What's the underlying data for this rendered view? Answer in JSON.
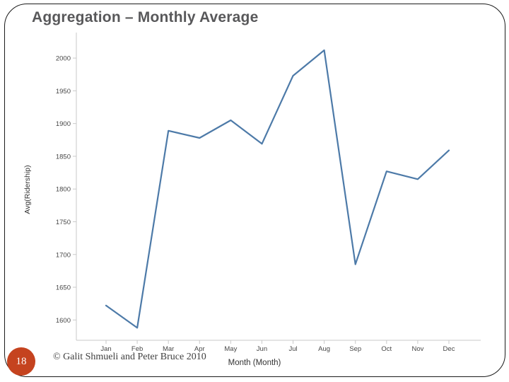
{
  "slide": {
    "title": "Aggregation – Monthly Average",
    "page_number": "18",
    "footer": "© Galit Shmueli and Peter Bruce 2010"
  },
  "chart_data": {
    "type": "line",
    "title": "",
    "categories": [
      "Jan",
      "Feb",
      "Mar",
      "Apr",
      "May",
      "Jun",
      "Jul",
      "Aug",
      "Sep",
      "Oct",
      "Nov",
      "Dec"
    ],
    "series": [
      {
        "name": "Avg(Ridership)",
        "values": [
          1622,
          1588,
          1889,
          1878,
          1905,
          1869,
          1973,
          2012,
          1685,
          1827,
          1815,
          1859
        ]
      }
    ],
    "xlabel": "Month (Month)",
    "ylabel": "Avg(Ridership)",
    "y_ticks": [
      2000,
      1950,
      1900,
      1850,
      1800,
      1750,
      1700,
      1650,
      1600
    ],
    "ylim": [
      1569,
      2039
    ],
    "grid": false,
    "legend": "none",
    "line_color": "#4d7aa8"
  },
  "colors": {
    "background": "#ffffff",
    "border": "#1b1b1b",
    "title": "#58585a",
    "axis_line": "#c9c9c9",
    "tick_label": "#474747",
    "line": "#4d7aa8",
    "badge": "#c5431f",
    "badge_text": "#ffffff",
    "footer_text": "#3f3f3f"
  }
}
